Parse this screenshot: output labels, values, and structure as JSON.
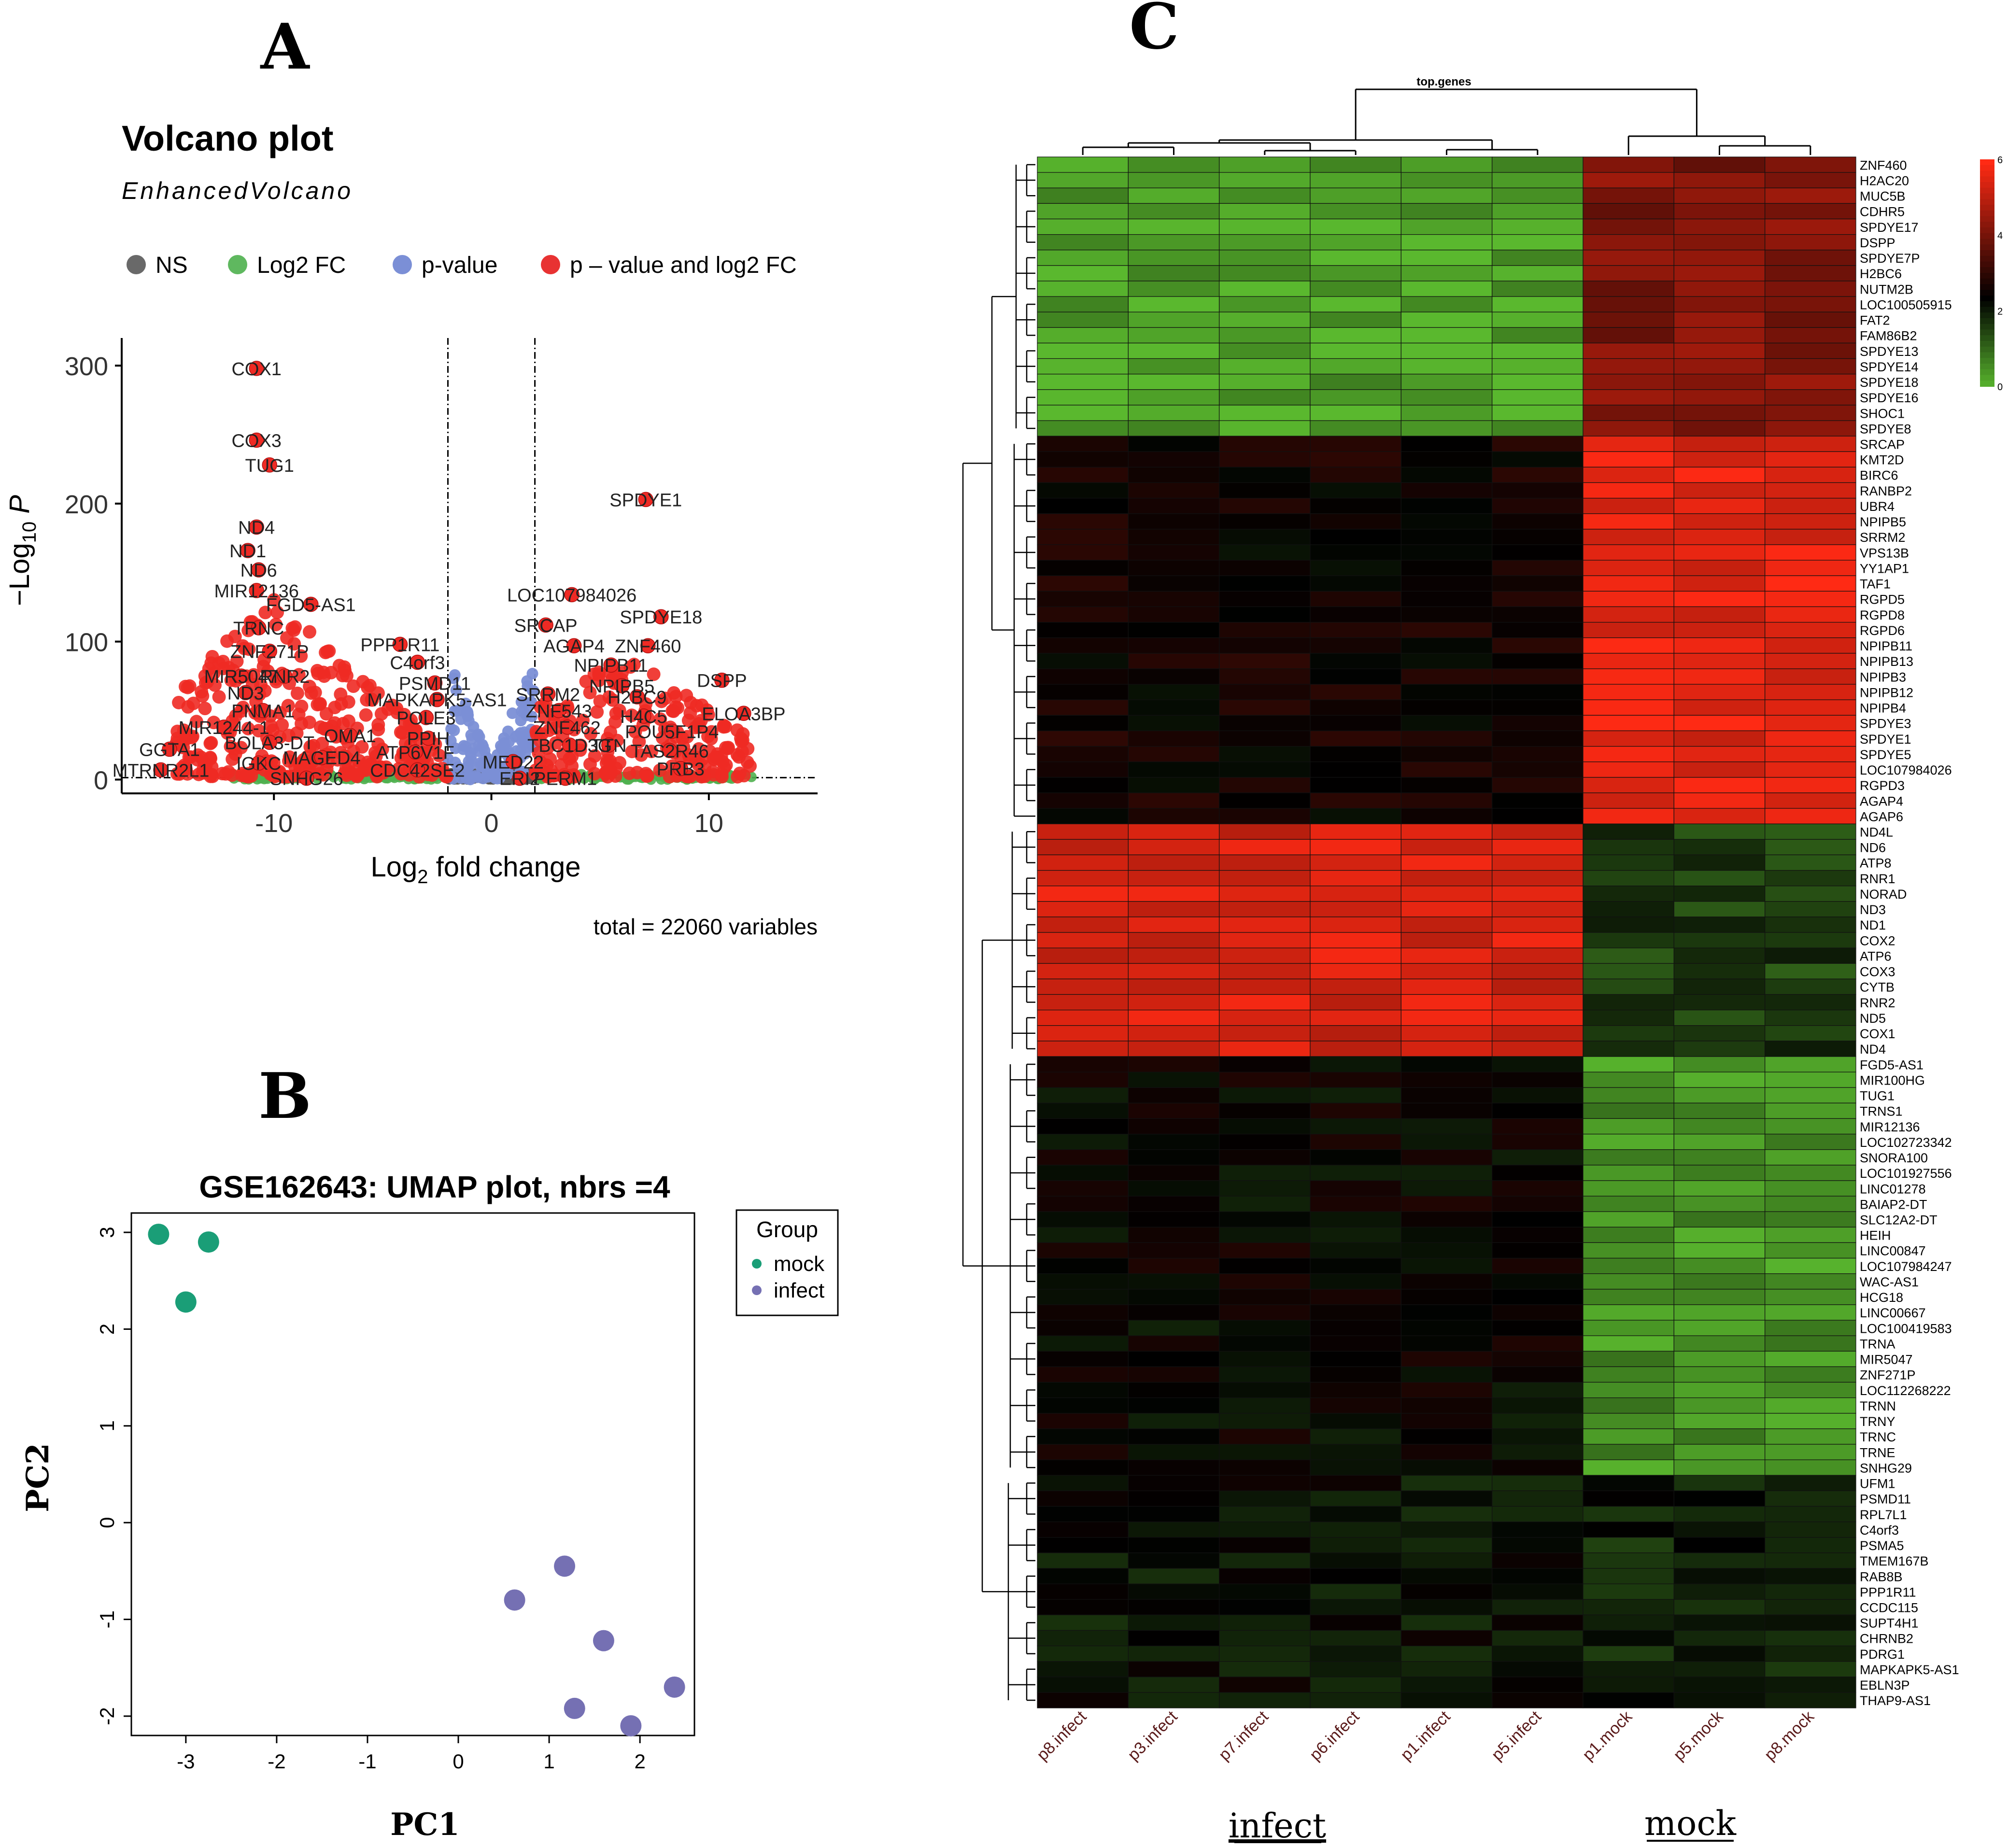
{
  "panel_labels": {
    "a": "A",
    "b": "B",
    "c": "C"
  },
  "chart_data": [
    {
      "panel": "A",
      "type": "scatter",
      "title": "Volcano plot",
      "subtitle": "EnhancedVolcano",
      "xlabel": "Log2 fold change",
      "ylabel": "-Log10 P",
      "xlim": [
        -17,
        15
      ],
      "ylim": [
        -10,
        320
      ],
      "xticks": [
        -10,
        0,
        10
      ],
      "yticks": [
        0,
        100,
        200,
        300
      ],
      "cutoffs": {
        "log2fc": [
          -2,
          2
        ],
        "pvalue_line": 0
      },
      "caption": "total = 22060 variables",
      "legend": [
        {
          "label": "NS",
          "color": "#696969"
        },
        {
          "label": "Log2 FC",
          "color": "#5fb85f"
        },
        {
          "label": "p-value",
          "color": "#7b8fd6"
        },
        {
          "label": "p – value and log2 FC",
          "color": "#e83232"
        }
      ],
      "labeled_points": [
        {
          "gene": "COX1",
          "x": -10.8,
          "y": 298
        },
        {
          "gene": "COX3",
          "x": -10.8,
          "y": 246
        },
        {
          "gene": "TUG1",
          "x": -10.2,
          "y": 228
        },
        {
          "gene": "ND4",
          "x": -10.8,
          "y": 183
        },
        {
          "gene": "ND1",
          "x": -11.2,
          "y": 166
        },
        {
          "gene": "ND6",
          "x": -10.7,
          "y": 152
        },
        {
          "gene": "MIR12136",
          "x": -10.8,
          "y": 137
        },
        {
          "gene": "FGD5-AS1",
          "x": -8.3,
          "y": 127
        },
        {
          "gene": "TRNC",
          "x": -10.7,
          "y": 110
        },
        {
          "gene": "ZNF271P",
          "x": -10.2,
          "y": 93
        },
        {
          "gene": "MIR5047",
          "x": -11.5,
          "y": 75
        },
        {
          "gene": "RNR2",
          "x": -9.5,
          "y": 75
        },
        {
          "gene": "ND3",
          "x": -11.3,
          "y": 63
        },
        {
          "gene": "PNMA1",
          "x": -10.5,
          "y": 50
        },
        {
          "gene": "MIR1244-1",
          "x": -12.3,
          "y": 38
        },
        {
          "gene": "BOLA3-DT",
          "x": -10.2,
          "y": 27
        },
        {
          "gene": "OMA1",
          "x": -6.5,
          "y": 32
        },
        {
          "gene": "MAGED4",
          "x": -7.8,
          "y": 16
        },
        {
          "gene": "IGKC",
          "x": -10.7,
          "y": 12
        },
        {
          "gene": "GGTA1",
          "x": -14.8,
          "y": 22
        },
        {
          "gene": "MTRNR2L1",
          "x": -15.2,
          "y": 7
        },
        {
          "gene": "SNHG26",
          "x": -8.5,
          "y": 1
        },
        {
          "gene": "PPP1R11",
          "x": -4.2,
          "y": 98
        },
        {
          "gene": "C4orf3",
          "x": -3.4,
          "y": 85
        },
        {
          "gene": "PSMD11",
          "x": -2.6,
          "y": 70
        },
        {
          "gene": "MAPKAPK5-AS1",
          "x": -2.5,
          "y": 58
        },
        {
          "gene": "POLE3",
          "x": -3.0,
          "y": 45
        },
        {
          "gene": "PPIH",
          "x": -2.9,
          "y": 30
        },
        {
          "gene": "ATP6V1F",
          "x": -3.5,
          "y": 20
        },
        {
          "gene": "CDC42SE2",
          "x": -3.4,
          "y": 7
        },
        {
          "gene": "SPDYE1",
          "x": 7.1,
          "y": 203
        },
        {
          "gene": "LOC107984026",
          "x": 3.7,
          "y": 134
        },
        {
          "gene": "SPDYE18",
          "x": 7.8,
          "y": 118
        },
        {
          "gene": "SRCAP",
          "x": 2.5,
          "y": 112
        },
        {
          "gene": "AGAP4",
          "x": 3.8,
          "y": 97
        },
        {
          "gene": "ZNF460",
          "x": 7.2,
          "y": 97
        },
        {
          "gene": "NPIPB11",
          "x": 5.5,
          "y": 83
        },
        {
          "gene": "NPIPB5",
          "x": 6.0,
          "y": 68
        },
        {
          "gene": "DSPP",
          "x": 10.6,
          "y": 72
        },
        {
          "gene": "SRRM2",
          "x": 2.6,
          "y": 62
        },
        {
          "gene": "H2BC9",
          "x": 6.7,
          "y": 60
        },
        {
          "gene": "ZNF543",
          "x": 3.1,
          "y": 50
        },
        {
          "gene": "H4C5",
          "x": 7.0,
          "y": 46
        },
        {
          "gene": "ELOA3BP",
          "x": 11.6,
          "y": 48
        },
        {
          "gene": "ZNF462",
          "x": 3.5,
          "y": 38
        },
        {
          "gene": "POU5F1P4",
          "x": 8.3,
          "y": 35
        },
        {
          "gene": "TBC1D3G",
          "x": 3.6,
          "y": 25
        },
        {
          "gene": "TTN",
          "x": 5.4,
          "y": 25
        },
        {
          "gene": "TAS2R46",
          "x": 8.2,
          "y": 21
        },
        {
          "gene": "MED22",
          "x": 1.0,
          "y": 13
        },
        {
          "gene": "PRB3",
          "x": 8.7,
          "y": 8
        },
        {
          "gene": "ERI2",
          "x": 1.3,
          "y": 1
        },
        {
          "gene": "PERM1",
          "x": 3.4,
          "y": 1
        }
      ]
    },
    {
      "panel": "B",
      "type": "scatter",
      "title": "GSE162643: UMAP plot, nbrs =4",
      "xlabel": "PC1",
      "ylabel": "PC2",
      "xlim": [
        -3.6,
        2.6
      ],
      "ylim": [
        -2.2,
        3.2
      ],
      "xticks": [
        -3,
        -2,
        -1,
        0,
        1,
        2
      ],
      "yticks": [
        -2,
        -1,
        0,
        1,
        2,
        3
      ],
      "legend_title": "Group",
      "series": [
        {
          "name": "mock",
          "color": "#1a9e77",
          "points": [
            [
              -3.3,
              2.98
            ],
            [
              -2.75,
              2.9
            ],
            [
              -3.0,
              2.28
            ]
          ]
        },
        {
          "name": "infect",
          "color": "#7570b3",
          "points": [
            [
              0.62,
              -0.8
            ],
            [
              1.17,
              -0.45
            ],
            [
              1.6,
              -1.22
            ],
            [
              2.38,
              -1.7
            ],
            [
              1.28,
              -1.92
            ],
            [
              1.9,
              -2.1
            ]
          ]
        }
      ]
    },
    {
      "panel": "C",
      "type": "heatmap",
      "title": "top.genes",
      "columns": [
        "p8.infect",
        "p3.infect",
        "p7.infect",
        "p6.infect",
        "p1.infect",
        "p5.infect",
        "p1.mock",
        "p5.mock",
        "p8.mock"
      ],
      "group_labels": {
        "infect": "infect",
        "mock": "mock"
      },
      "color_scale": {
        "min": 0,
        "max": 6,
        "ticks": [
          0,
          2,
          4,
          6
        ],
        "low": "#5ab82e",
        "mid": "#000000",
        "high": "#ff2a14"
      },
      "rows": [
        "ZNF460",
        "H2AC20",
        "MUC5B",
        "CDHR5",
        "SPDYE17",
        "DSPP",
        "SPDYE7P",
        "H2BC6",
        "NUTM2B",
        "LOC100505915",
        "FAT2",
        "FAM86B2",
        "SPDYE13",
        "SPDYE14",
        "SPDYE18",
        "SPDYE16",
        "SHOC1",
        "SPDYE8",
        "SRCAP",
        "KMT2D",
        "BIRC6",
        "RANBP2",
        "UBR4",
        "NPIPB5",
        "SRRM2",
        "VPS13B",
        "YY1AP1",
        "TAF1",
        "RGPD5",
        "RGPD8",
        "RGPD6",
        "NPIPB11",
        "NPIPB13",
        "NPIPB3",
        "NPIPB12",
        "NPIPB4",
        "SPDYE3",
        "SPDYE1",
        "SPDYE5",
        "LOC107984026",
        "RGPD3",
        "AGAP4",
        "AGAP6",
        "ND4L",
        "ND6",
        "ATP8",
        "RNR1",
        "NORAD",
        "ND3",
        "ND1",
        "COX2",
        "ATP6",
        "COX3",
        "CYTB",
        "RNR2",
        "ND5",
        "COX1",
        "ND4",
        "FGD5-AS1",
        "MIR100HG",
        "TUG1",
        "TRNS1",
        "MIR12136",
        "LOC102723342",
        "SNORA100",
        "LOC101927556",
        "LINC01278",
        "BAIAP2-DT",
        "SLC12A2-DT",
        "HEIH",
        "LINC00847",
        "LOC107984247",
        "WAC-AS1",
        "HCG18",
        "LINC00667",
        "LOC100419583",
        "TRNA",
        "MIR5047",
        "ZNF271P",
        "LOC112268222",
        "TRNN",
        "TRNY",
        "TRNC",
        "TRNE",
        "SNHG29",
        "UFM1",
        "PSMD11",
        "RPL7L1",
        "C4orf3",
        "PSMA5",
        "TMEM167B",
        "RAB8B",
        "PPP1R11",
        "CCDC115",
        "SUPT4H1",
        "CHRNB2",
        "PDRG1",
        "MAPKAPK5-AS1",
        "EBLN3P",
        "THAP9-AS1"
      ],
      "blocks": [
        {
          "rows": "ZNF460-SPDYE8",
          "infect_value": 0.3,
          "mock_value": 4.2
        },
        {
          "rows": "SRCAP-AGAP6",
          "infect_value": 2.6,
          "mock_value": 5.6
        },
        {
          "rows": "ND4L-ND4",
          "infect_value": 5.4,
          "mock_value": 1.6
        },
        {
          "rows": "FGD5-AS1-SNHG29",
          "infect_value": 2.4,
          "mock_value": 0.5
        },
        {
          "rows": "UFM1-THAP9-AS1",
          "infect_value": 2.2,
          "mock_value": 2.0
        }
      ]
    }
  ]
}
